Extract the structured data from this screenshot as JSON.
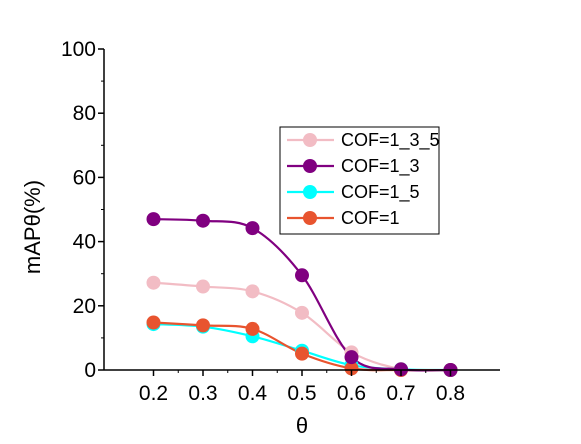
{
  "chart_data": {
    "type": "line",
    "title": "",
    "xlabel": "θ",
    "ylabel": "mAPθ(%)",
    "x": [
      0.2,
      0.3,
      0.4,
      0.5,
      0.6,
      0.7,
      0.8
    ],
    "xticks": [
      "0.2",
      "0.3",
      "0.4",
      "0.5",
      "0.6",
      "0.7",
      "0.8"
    ],
    "yticks": [
      "0",
      "20",
      "40",
      "60",
      "80",
      "100"
    ],
    "xlim": [
      0.1,
      0.9
    ],
    "ylim": [
      0,
      100
    ],
    "grid": false,
    "legend_position": "right",
    "series": [
      {
        "name": "COF=1_3_5",
        "color": "#f2bcc4",
        "values": [
          27.2,
          26,
          24.5,
          17.8,
          5.5,
          0.3,
          0
        ]
      },
      {
        "name": "COF=1_3",
        "color": "#800080",
        "values": [
          47,
          46.5,
          44.2,
          29.5,
          4,
          0.2,
          0
        ]
      },
      {
        "name": "COF=1_5",
        "color": "#00ffff",
        "values": [
          14.3,
          13.5,
          10.5,
          6,
          1.5,
          0.2,
          0
        ]
      },
      {
        "name": "COF=1",
        "color": "#e8542f",
        "values": [
          14.8,
          13.9,
          12.8,
          5.1,
          0.5,
          0,
          0
        ]
      }
    ],
    "draw_order": [
      0,
      2,
      3,
      1
    ]
  }
}
